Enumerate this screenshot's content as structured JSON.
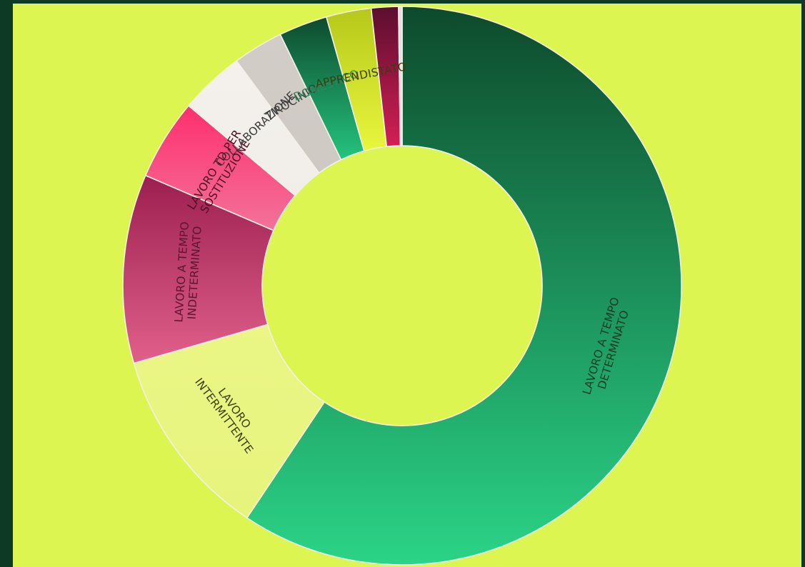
{
  "page": {
    "background_color": "#0c3a24",
    "panel_color": "#ddf550"
  },
  "chart_data": {
    "type": "pie",
    "donut": true,
    "start_angle": 0,
    "direction": "clockwise",
    "legend": "none",
    "title": "",
    "slices": [
      {
        "label": "LAVORO A TEMPO DETERMINATO",
        "lines": [
          "LAVORO A TEMPO",
          "DETERMINATO"
        ],
        "value": 57.0,
        "color_top": "#0d4a2c",
        "color_bottom": "#2bd487",
        "label_color": "#123b23"
      },
      {
        "label": "LAVORO INTERMITTENTE",
        "lines": [
          "LAVORO",
          "INTERMITTENTE"
        ],
        "value": 10.7,
        "color_top": "#ebf685",
        "color_bottom": "#e6f47c",
        "label_color": "#3a3e10"
      },
      {
        "label": "LAVORO A TEMPO INDETERMINATO",
        "lines": [
          "LAVORO A TEMPO",
          "INDETERMINATO"
        ],
        "value": 10.5,
        "color_top": "#9c1f4f",
        "color_bottom": "#e0608a",
        "label_color": "#5c1430"
      },
      {
        "label": "LAVORO TD PER SOSTITUZIONE",
        "lines": [
          "LAVORO TD PER",
          "SOSTITUZIONE"
        ],
        "value": 4.5,
        "color_top": "#ff2f6e",
        "color_bottom": "#f2739a",
        "label_color": "#4a0e20"
      },
      {
        "label": "COLLABORAZIONE",
        "lines": [
          "COLLABORAZIONE"
        ],
        "value": 3.6,
        "color_top": "#f4f1ec",
        "color_bottom": "#f1eeea",
        "label_color": "#3a3a3a"
      },
      {
        "label": "TIROCINIO",
        "lines": [
          "TIROCINIO"
        ],
        "value": 2.8,
        "color_top": "#d3cdc8",
        "color_bottom": "#cfc9c4",
        "label_color": "#3a3a3a"
      },
      {
        "label": "DOMESTICO",
        "lines": [
          "DOMESTICO"
        ],
        "value": 2.7,
        "color_top": "#0e4a2d",
        "color_bottom": "#24c47e",
        "label_color": "#2a8a5a"
      },
      {
        "label": "APPRENDISTATO",
        "lines": [
          "APPRENDISTATO"
        ],
        "value": 2.5,
        "color_top": "#b6c81a",
        "color_bottom": "#e9f63d",
        "label_color": "#3a3e10"
      },
      {
        "label": "",
        "lines": [],
        "value": 1.5,
        "color_top": "#5a0e2e",
        "color_bottom": "#d41f55",
        "label_color": "#5a0e2e"
      },
      {
        "label": "",
        "lines": [],
        "value": 0.2,
        "color_top": "#e8dfe6",
        "color_bottom": "#e8dfe6",
        "label_color": "#3a3a3a"
      }
    ]
  }
}
